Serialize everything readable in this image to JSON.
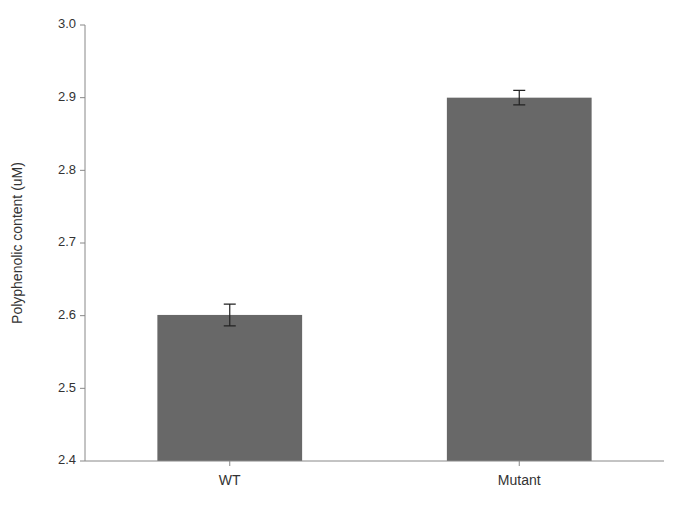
{
  "chart_data": {
    "type": "bar",
    "categories": [
      "WT",
      "Mutant"
    ],
    "values": [
      2.601,
      2.9
    ],
    "errors": [
      0.015,
      0.01
    ],
    "color": "#686868",
    "ylabel": "Polyphenolic content (uM)",
    "ylim": [
      2.4,
      3.0
    ],
    "yticks": [
      2.4,
      2.5,
      2.6,
      2.7,
      2.8,
      2.9,
      {
        "value": 3.0,
        "label": "3.0"
      }
    ],
    "grid": false
  }
}
